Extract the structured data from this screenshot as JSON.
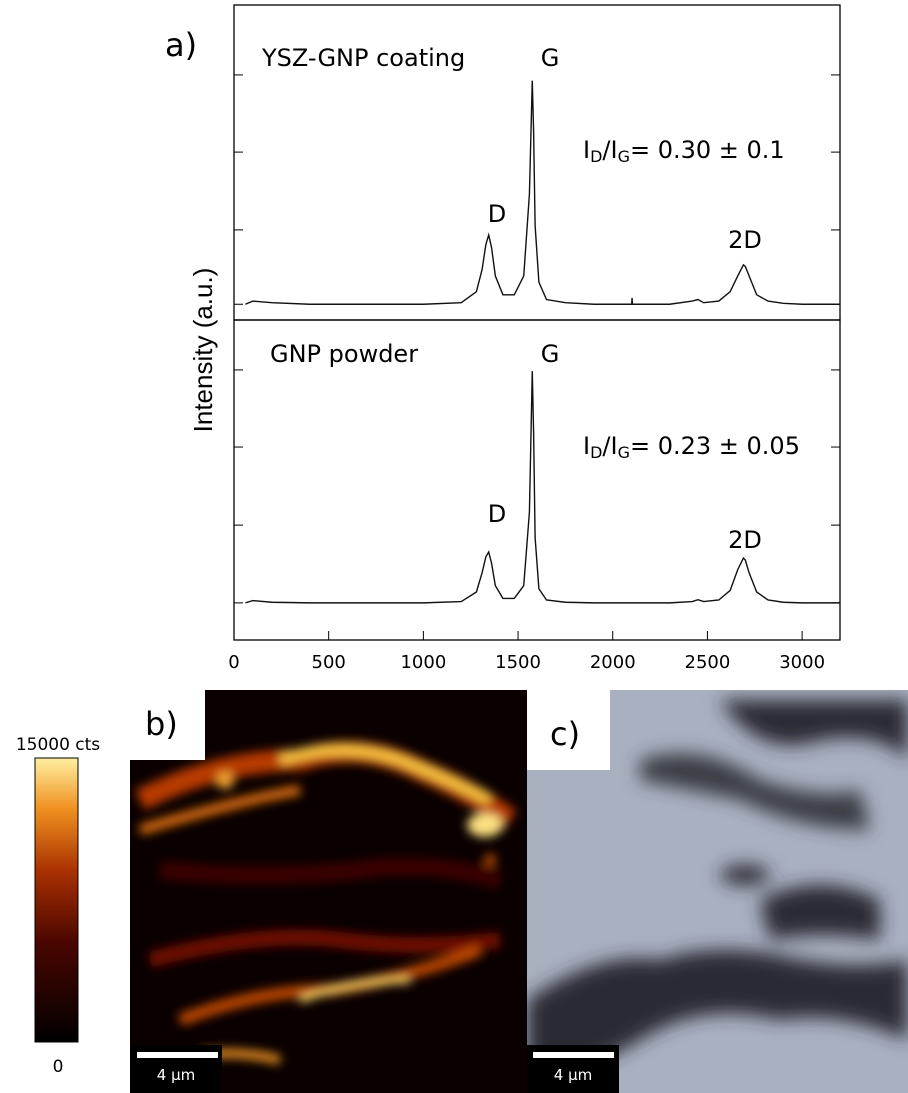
{
  "chart_data": [
    {
      "type": "line",
      "label": "YSZ-GNP coating",
      "peak_labels": [
        "D",
        "G",
        "2D"
      ],
      "ratio": [
        "I",
        "D",
        "/I",
        "G",
        "= 0.30 ± 0.1"
      ],
      "xlim": [
        0,
        3200
      ],
      "ylim": [
        0,
        100
      ],
      "yticks": [
        5,
        28.6,
        53.3,
        77.8
      ],
      "color": "#111111",
      "x": [
        60,
        100,
        200,
        400,
        600,
        800,
        1000,
        1200,
        1280,
        1310,
        1330,
        1345,
        1360,
        1380,
        1420,
        1480,
        1530,
        1560,
        1575,
        1582,
        1590,
        1610,
        1650,
        1750,
        1900,
        2100,
        2102,
        2104,
        2300,
        2420,
        2450,
        2480,
        2560,
        2620,
        2660,
        2690,
        2700,
        2720,
        2760,
        2820,
        2900,
        3000,
        3200
      ],
      "values": [
        5,
        6,
        5.5,
        5,
        5,
        5,
        5,
        5.5,
        9,
        16,
        24,
        27,
        23,
        14,
        8,
        8,
        14,
        40,
        76,
        60,
        30,
        12,
        6.5,
        5.5,
        5,
        5,
        7,
        5,
        5,
        6,
        6.5,
        5.5,
        6,
        9,
        14,
        17.5,
        17,
        14,
        8,
        6,
        5.3,
        5,
        5
      ]
    },
    {
      "type": "line",
      "label": "GNP powder",
      "peak_labels": [
        "D",
        "G",
        "2D"
      ],
      "ratio": [
        "I",
        "D",
        "/I",
        "G",
        "= 0.23 ± 0.05"
      ],
      "xlim": [
        0,
        3200
      ],
      "ylim": [
        0,
        100
      ],
      "yticks": [
        11.6,
        35.9,
        60.3,
        84.4
      ],
      "xticks": [
        0,
        500,
        1000,
        1500,
        2000,
        2500,
        3000
      ],
      "color": "#111111",
      "x": [
        60,
        100,
        200,
        400,
        600,
        800,
        1000,
        1200,
        1280,
        1310,
        1330,
        1345,
        1360,
        1380,
        1420,
        1480,
        1530,
        1560,
        1575,
        1582,
        1590,
        1610,
        1650,
        1750,
        1900,
        2100,
        2102,
        2104,
        2300,
        2420,
        2450,
        2480,
        2560,
        2620,
        2660,
        2690,
        2700,
        2720,
        2760,
        2820,
        2900,
        3000,
        3200
      ],
      "values": [
        11.6,
        12.3,
        11.8,
        11.6,
        11.6,
        11.6,
        11.6,
        12,
        15,
        21,
        26,
        27.5,
        24,
        17,
        13,
        13,
        17,
        40,
        84,
        65,
        32,
        16,
        12.5,
        11.8,
        11.6,
        11.6,
        11.6,
        11.6,
        11.6,
        12,
        12.6,
        12,
        12.5,
        15.5,
        22,
        25.6,
        25,
        21,
        15,
        12.5,
        11.8,
        11.6,
        11.6
      ]
    }
  ],
  "figure": {
    "panel_labels": [
      "a)",
      "b)",
      "c)"
    ],
    "ylabel": "Intensity (a.u.)",
    "colorbar": {
      "lim": [
        0,
        15000
      ],
      "ticks": [
        {
          "value": 15000,
          "label": "15000 cts"
        },
        {
          "value": 0,
          "label": "0"
        }
      ]
    },
    "scale_bars": [
      "4 µm",
      "4 µm"
    ]
  }
}
